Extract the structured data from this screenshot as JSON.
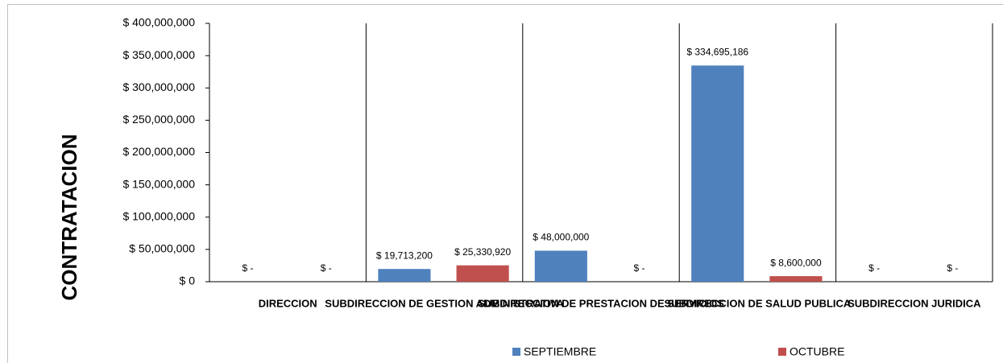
{
  "chart_data": {
    "type": "bar",
    "y_axis_label": "CONTRATACION",
    "categories": [
      "DIRECCION",
      "SUBDIRECCION DE GESTION ADMINISTRATIVA",
      "SUBDIRECCION DE PRESTACION DE SERVICIOS",
      "SUBDIRECCION DE SALUD PUBLICA",
      "SUBDIRECCION JURIDICA"
    ],
    "series": [
      {
        "name": "SEPTIEMBRE",
        "color": "#4f81bd",
        "values": [
          0,
          19713200,
          48000000,
          334695186,
          0
        ],
        "value_labels": [
          "$ -",
          "$ 19,713,200",
          "$ 48,000,000",
          "$ 334,695,186",
          "$ -"
        ]
      },
      {
        "name": "OCTUBRE",
        "color": "#c0504d",
        "values": [
          0,
          25330920,
          0,
          8600000,
          0
        ],
        "value_labels": [
          "$ -",
          "$ 25,330,920",
          "$ -",
          "$ 8,600,000",
          "$ -"
        ]
      }
    ],
    "ylim": [
      0,
      400000000
    ],
    "yticks": [
      {
        "value": 0,
        "label": "$ 0"
      },
      {
        "value": 50000000,
        "label": "$ 50,000,000"
      },
      {
        "value": 100000000,
        "label": "$ 100,000,000"
      },
      {
        "value": 150000000,
        "label": "$ 150,000,000"
      },
      {
        "value": 200000000,
        "label": "$ 200,000,000"
      },
      {
        "value": 250000000,
        "label": "$ 250,000,000"
      },
      {
        "value": 300000000,
        "label": "$ 300,000,000"
      },
      {
        "value": 350000000,
        "label": "$ 350,000,000"
      },
      {
        "value": 400000000,
        "label": "$ 400,000,000"
      }
    ],
    "legend": "bottom"
  }
}
